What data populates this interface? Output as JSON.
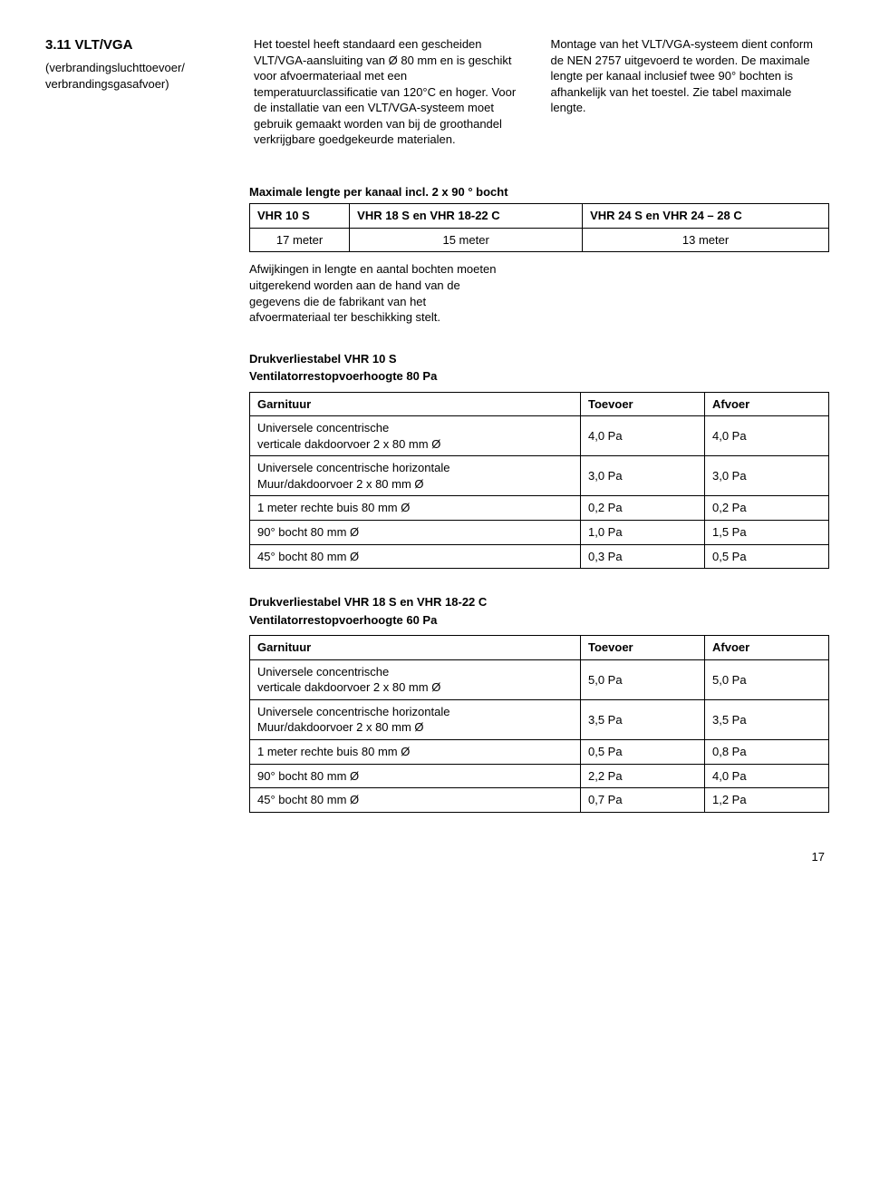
{
  "section_number": "3.11 VLT/VGA",
  "section_subtitle": "(verbrandingsluchttoevoer/\nverbrandingsgasafvoer)",
  "para_mid": "Het toestel heeft standaard een gescheiden VLT/VGA-aansluiting van Ø 80 mm en is geschikt voor afvoermateriaal met een temperatuurclassificatie van 120°C en hoger. Voor de installatie van een VLT/VGA-systeem moet gebruik gemaakt worden van bij de groothandel verkrijgbare goedgekeurde materialen.",
  "para_right": "Montage van het VLT/VGA-systeem dient conform de NEN 2757 uitgevoerd te worden. De maximale lengte per kanaal inclusief twee 90° bochten is afhankelijk van het toestel. Zie tabel maximale lengte.",
  "max_table": {
    "title": "Maximale lengte per kanaal incl. 2 x 90 ° bocht",
    "headers": [
      "VHR 10 S",
      "VHR 18 S en VHR 18-22 C",
      "VHR 24 S en VHR 24 – 28 C"
    ],
    "row": [
      "17 meter",
      "15 meter",
      "13 meter"
    ]
  },
  "notes": "Afwijkingen in lengte en aantal bochten moeten uitgerekend worden aan de hand van de gegevens die de fabrikant van het afvoermateriaal ter beschikking stelt.",
  "druk1": {
    "title": "Drukverliestabel VHR 10 S",
    "sub": "Ventilatorrestopvoerhoogte 80 Pa",
    "headers": [
      "Garnituur",
      "Toevoer",
      "Afvoer"
    ],
    "rows": [
      [
        "Universele concentrische\nverticale dakdoorvoer 2 x 80 mm Ø",
        "4,0 Pa",
        "4,0 Pa"
      ],
      [
        "Universele concentrische horizontale\nMuur/dakdoorvoer 2 x 80 mm Ø",
        "3,0 Pa",
        "3,0 Pa"
      ],
      [
        "1 meter rechte buis 80 mm Ø",
        "0,2 Pa",
        "0,2 Pa"
      ],
      [
        "90° bocht 80 mm Ø",
        "1,0 Pa",
        "1,5 Pa"
      ],
      [
        "45° bocht 80 mm Ø",
        "0,3 Pa",
        "0,5 Pa"
      ]
    ]
  },
  "druk2": {
    "title": "Drukverliestabel VHR 18 S en VHR 18-22 C",
    "sub": "Ventilatorrestopvoerhoogte 60 Pa",
    "headers": [
      "Garnituur",
      "Toevoer",
      "Afvoer"
    ],
    "rows": [
      [
        "Universele concentrische\nverticale dakdoorvoer 2 x 80 mm Ø",
        "5,0 Pa",
        "5,0 Pa"
      ],
      [
        "Universele concentrische horizontale\nMuur/dakdoorvoer 2 x 80 mm Ø",
        "3,5 Pa",
        "3,5 Pa"
      ],
      [
        "1 meter rechte buis 80 mm Ø",
        "0,5 Pa",
        "0,8 Pa"
      ],
      [
        "90° bocht 80 mm Ø",
        "2,2 Pa",
        "4,0 Pa"
      ],
      [
        "45° bocht 80 mm Ø",
        "0,7 Pa",
        "1,2 Pa"
      ]
    ]
  },
  "page_num": "17"
}
